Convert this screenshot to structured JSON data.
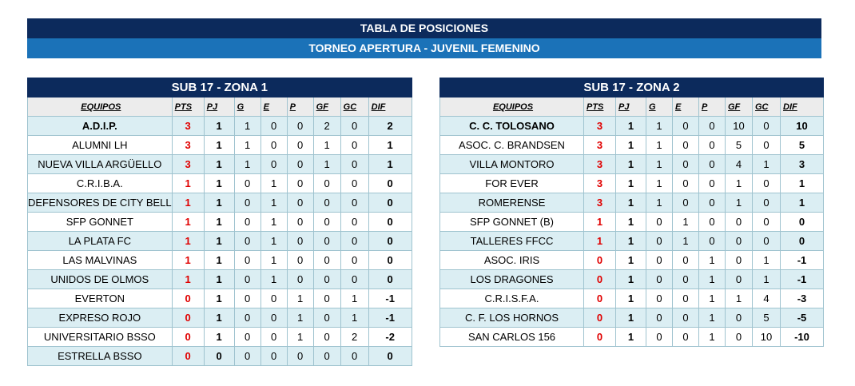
{
  "header": {
    "title": "TABLA DE POSICIONES",
    "subtitle": "TORNEO APERTURA -  JUVENIL FEMENINO"
  },
  "tables": [
    {
      "title": "SUB 17 - ZONA 1",
      "columns": [
        "EQUIPOS",
        "PTS",
        "PJ",
        "G",
        "E",
        "P",
        "GF",
        "GC",
        "DIF"
      ],
      "rows": [
        [
          "A.D.I.P.",
          3,
          1,
          1,
          0,
          0,
          2,
          0,
          2
        ],
        [
          "ALUMNI LH",
          3,
          1,
          1,
          0,
          0,
          1,
          0,
          1
        ],
        [
          "NUEVA VILLA ARGÜELLO",
          3,
          1,
          1,
          0,
          0,
          1,
          0,
          1
        ],
        [
          "C.R.I.B.A.",
          1,
          1,
          0,
          1,
          0,
          0,
          0,
          0
        ],
        [
          "DEFENSORES DE CITY BELL",
          1,
          1,
          0,
          1,
          0,
          0,
          0,
          0
        ],
        [
          "SFP GONNET",
          1,
          1,
          0,
          1,
          0,
          0,
          0,
          0
        ],
        [
          "LA PLATA FC",
          1,
          1,
          0,
          1,
          0,
          0,
          0,
          0
        ],
        [
          "LAS MALVINAS",
          1,
          1,
          0,
          1,
          0,
          0,
          0,
          0
        ],
        [
          "UNIDOS DE OLMOS",
          1,
          1,
          0,
          1,
          0,
          0,
          0,
          0
        ],
        [
          "EVERTON",
          0,
          1,
          0,
          0,
          1,
          0,
          1,
          -1
        ],
        [
          "EXPRESO ROJO",
          0,
          1,
          0,
          0,
          1,
          0,
          1,
          -1
        ],
        [
          "UNIVERSITARIO BSSO",
          0,
          1,
          0,
          0,
          1,
          0,
          2,
          -2
        ],
        [
          "ESTRELLA BSSO",
          0,
          0,
          0,
          0,
          0,
          0,
          0,
          0
        ]
      ]
    },
    {
      "title": "SUB 17 - ZONA 2",
      "columns": [
        "EQUIPOS",
        "PTS",
        "PJ",
        "G",
        "E",
        "P",
        "GF",
        "GC",
        "DIF"
      ],
      "rows": [
        [
          "C. C. TOLOSANO",
          3,
          1,
          1,
          0,
          0,
          10,
          0,
          10
        ],
        [
          "ASOC. C. BRANDSEN",
          3,
          1,
          1,
          0,
          0,
          5,
          0,
          5
        ],
        [
          "VILLA MONTORO",
          3,
          1,
          1,
          0,
          0,
          4,
          1,
          3
        ],
        [
          "FOR EVER",
          3,
          1,
          1,
          0,
          0,
          1,
          0,
          1
        ],
        [
          "ROMERENSE",
          3,
          1,
          1,
          0,
          0,
          1,
          0,
          1
        ],
        [
          "SFP GONNET (B)",
          1,
          1,
          0,
          1,
          0,
          0,
          0,
          0
        ],
        [
          "TALLERES FFCC",
          1,
          1,
          0,
          1,
          0,
          0,
          0,
          0
        ],
        [
          "ASOC. IRIS",
          0,
          1,
          0,
          0,
          1,
          0,
          1,
          -1
        ],
        [
          "LOS DRAGONES",
          0,
          1,
          0,
          0,
          1,
          0,
          1,
          -1
        ],
        [
          "C.R.I.S.F.A.",
          0,
          1,
          0,
          0,
          1,
          1,
          4,
          -3
        ],
        [
          "C. F. LOS HORNOS",
          0,
          1,
          0,
          0,
          1,
          0,
          5,
          -5
        ],
        [
          "SAN CARLOS 156",
          0,
          1,
          0,
          0,
          1,
          0,
          10,
          -10
        ]
      ]
    }
  ]
}
